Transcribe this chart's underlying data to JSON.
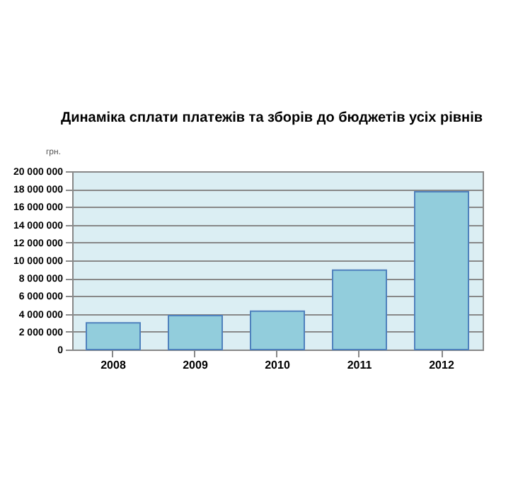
{
  "chart_data": {
    "type": "bar",
    "title": "Динаміка сплати платежів та зборів до бюджетів усіх рівнів",
    "ylabel": "грн.",
    "categories": [
      "2008",
      "2009",
      "2010",
      "2011",
      "2012"
    ],
    "values": [
      3000000,
      3800000,
      4300000,
      8900000,
      17700000
    ],
    "color": "#92cddc",
    "ylim": [
      0,
      20000000
    ],
    "yticks": [
      {
        "value": 0,
        "label": "0"
      },
      {
        "value": 2000000,
        "label": "2 000 000"
      },
      {
        "value": 4000000,
        "label": "4 000 000"
      },
      {
        "value": 6000000,
        "label": "6 000 000"
      },
      {
        "value": 8000000,
        "label": "8 000 000"
      },
      {
        "value": 10000000,
        "label": "10 000 000"
      },
      {
        "value": 12000000,
        "label": "12 000 000"
      },
      {
        "value": 14000000,
        "label": "14 000 000"
      },
      {
        "value": 16000000,
        "label": "16 000 000"
      },
      {
        "value": 18000000,
        "label": "18 000 000"
      },
      {
        "value": 20000000,
        "label": "20 000 000"
      }
    ],
    "grid": "y"
  }
}
